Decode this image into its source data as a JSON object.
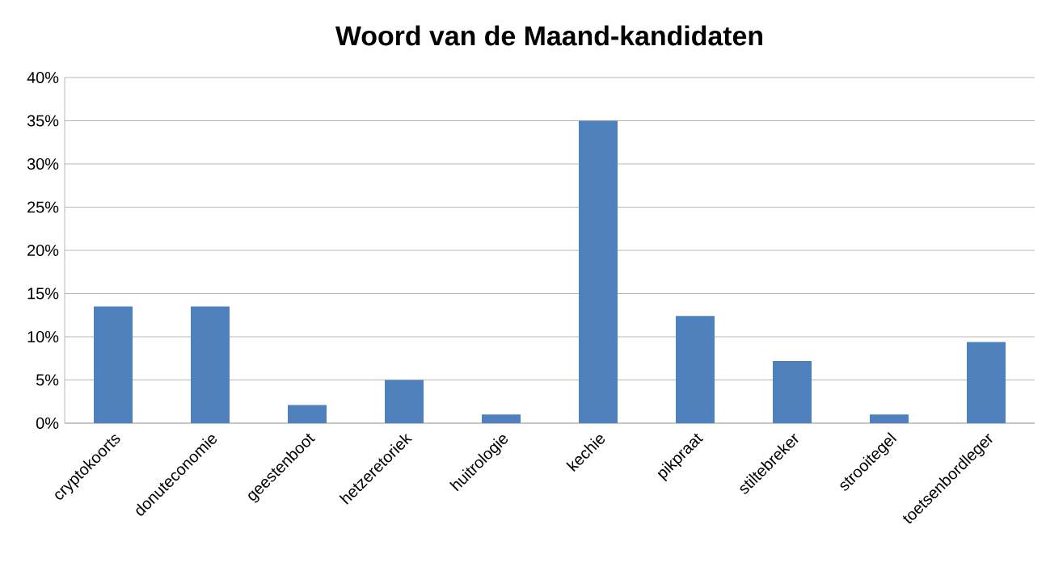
{
  "chart_data": {
    "type": "bar",
    "title": "Woord van de Maand-kandidaten",
    "categories": [
      "cryptokoorts",
      "donuteconomie",
      "geestenboot",
      "hetzeretoriek",
      "huitrologie",
      "kechie",
      "pikpraat",
      "stiltebreker",
      "strooitegel",
      "toetsenbordleger"
    ],
    "values": [
      13.5,
      13.5,
      2.1,
      5.0,
      1.0,
      35,
      12.4,
      7.2,
      1.0,
      9.4
    ],
    "color": "#4f81bd",
    "ylim": [
      0,
      40
    ],
    "yticks": [
      {
        "value": 0,
        "label": "0%"
      },
      {
        "value": 5,
        "label": "5%"
      },
      {
        "value": 10,
        "label": "10%"
      },
      {
        "value": 15,
        "label": "15%"
      },
      {
        "value": 20,
        "label": "20%"
      },
      {
        "value": 25,
        "label": "25%"
      },
      {
        "value": 30,
        "label": "30%"
      },
      {
        "value": 35,
        "label": "35%"
      },
      {
        "value": 40,
        "label": "40%"
      }
    ],
    "grid": "y"
  }
}
